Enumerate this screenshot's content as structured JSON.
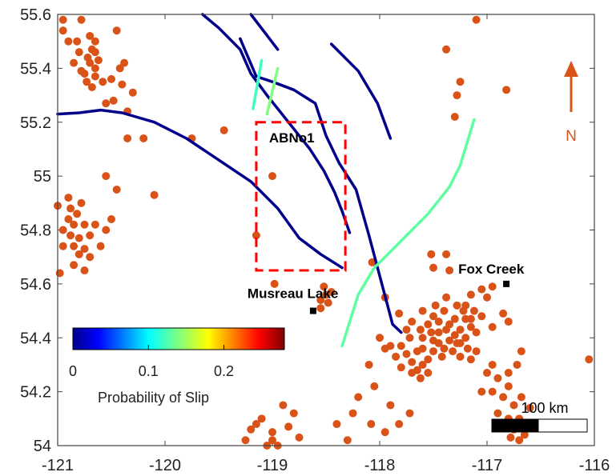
{
  "chart_data": {
    "type": "map",
    "xlim": [
      -121,
      -116
    ],
    "ylim": [
      54,
      55.6
    ],
    "x_ticks": [
      -121,
      -120,
      -119,
      -118,
      -117,
      -116
    ],
    "y_ticks": [
      54,
      54.2,
      54.4,
      54.6,
      54.8,
      55,
      55.2,
      55.4,
      55.6
    ],
    "colors": {
      "event": "#d95319",
      "fault_low": "#00008b",
      "box": "#ff0000",
      "north": "#d95319"
    },
    "faults": [
      {
        "prob": 0.0,
        "points": [
          [
            -121,
            55.23
          ],
          [
            -120.8,
            55.235
          ],
          [
            -120.6,
            55.245
          ],
          [
            -120.4,
            55.235
          ],
          [
            -120.1,
            55.2
          ],
          [
            -119.8,
            55.14
          ],
          [
            -119.5,
            55.06
          ],
          [
            -119.2,
            54.98
          ],
          [
            -118.95,
            54.88
          ],
          [
            -118.75,
            54.77
          ],
          [
            -118.55,
            54.71
          ],
          [
            -118.35,
            54.66
          ]
        ]
      },
      {
        "prob": 0.0,
        "points": [
          [
            -119.65,
            55.6
          ],
          [
            -119.5,
            55.55
          ],
          [
            -119.3,
            55.47
          ],
          [
            -119.2,
            55.38
          ],
          [
            -119.05,
            55.3
          ],
          [
            -118.85,
            55.2
          ],
          [
            -118.65,
            55.1
          ],
          [
            -118.52,
            55.02
          ],
          [
            -118.42,
            54.94
          ],
          [
            -118.35,
            54.87
          ],
          [
            -118.28,
            54.79
          ]
        ]
      },
      {
        "prob": 0.0,
        "points": [
          [
            -119.3,
            55.51
          ],
          [
            -119.15,
            55.37
          ],
          [
            -119.0,
            55.35
          ],
          [
            -118.8,
            55.32
          ],
          [
            -118.6,
            55.27
          ],
          [
            -118.5,
            55.15
          ],
          [
            -118.38,
            55.05
          ],
          [
            -118.22,
            54.95
          ],
          [
            -118.1,
            54.78
          ],
          [
            -117.98,
            54.6
          ],
          [
            -117.88,
            54.45
          ],
          [
            -117.8,
            54.42
          ]
        ]
      },
      {
        "prob": 0.0,
        "points": [
          [
            -119.2,
            55.6
          ],
          [
            -118.95,
            55.47
          ]
        ]
      },
      {
        "prob": 0.0,
        "points": [
          [
            -118.45,
            55.49
          ],
          [
            -118.2,
            55.39
          ],
          [
            -118.02,
            55.27
          ],
          [
            -117.9,
            55.14
          ]
        ]
      },
      {
        "prob": 0.12,
        "points": [
          [
            -119.1,
            55.43
          ],
          [
            -119.18,
            55.25
          ]
        ]
      },
      {
        "prob": 0.14,
        "points": [
          [
            -118.95,
            55.4
          ],
          [
            -119.05,
            55.23
          ]
        ]
      },
      {
        "prob": 0.13,
        "points": [
          [
            -117.12,
            55.21
          ],
          [
            -117.25,
            55.04
          ],
          [
            -117.35,
            54.96
          ],
          [
            -117.55,
            54.86
          ],
          [
            -117.8,
            54.76
          ],
          [
            -118.05,
            54.66
          ],
          [
            -118.2,
            54.56
          ],
          [
            -118.35,
            54.37
          ]
        ]
      }
    ],
    "events": [
      [
        -120.95,
        55.58
      ],
      [
        -120.78,
        55.58
      ],
      [
        -120.95,
        55.54
      ],
      [
        -120.7,
        55.52
      ],
      [
        -120.9,
        55.5
      ],
      [
        -120.82,
        55.5
      ],
      [
        -120.65,
        55.5
      ],
      [
        -120.68,
        55.47
      ],
      [
        -120.72,
        55.44
      ],
      [
        -120.85,
        55.42
      ],
      [
        -120.62,
        55.43
      ],
      [
        -120.7,
        55.42
      ],
      [
        -120.65,
        55.4
      ],
      [
        -120.78,
        55.39
      ],
      [
        -120.65,
        55.37
      ],
      [
        -120.73,
        55.35
      ],
      [
        -120.58,
        55.35
      ],
      [
        -120.68,
        55.33
      ],
      [
        -120.55,
        55.27
      ],
      [
        -120.35,
        55.24
      ],
      [
        -120.48,
        55.28
      ],
      [
        -120.75,
        55.38
      ],
      [
        -120.45,
        55.54
      ],
      [
        -120.42,
        55.4
      ],
      [
        -120.38,
        55.42
      ],
      [
        -120.5,
        55.36
      ],
      [
        -120.4,
        55.34
      ],
      [
        -120.3,
        55.31
      ],
      [
        -120.8,
        55.46
      ],
      [
        -120.65,
        55.46
      ],
      [
        -120.35,
        55.14
      ],
      [
        -120.2,
        55.14
      ],
      [
        -119.75,
        55.14
      ],
      [
        -119.45,
        55.17
      ],
      [
        -120.1,
        54.93
      ],
      [
        -120.55,
        55.0
      ],
      [
        -120.45,
        54.95
      ],
      [
        -121.0,
        54.89
      ],
      [
        -120.88,
        54.88
      ],
      [
        -120.82,
        54.86
      ],
      [
        -120.78,
        54.9
      ],
      [
        -120.9,
        54.84
      ],
      [
        -120.85,
        54.82
      ],
      [
        -120.75,
        54.82
      ],
      [
        -120.95,
        54.8
      ],
      [
        -120.88,
        54.78
      ],
      [
        -120.8,
        54.77
      ],
      [
        -120.7,
        54.78
      ],
      [
        -120.85,
        54.74
      ],
      [
        -120.75,
        54.73
      ],
      [
        -120.8,
        54.71
      ],
      [
        -120.7,
        54.7
      ],
      [
        -120.95,
        54.74
      ],
      [
        -120.6,
        54.74
      ],
      [
        -120.55,
        54.8
      ],
      [
        -120.5,
        54.84
      ],
      [
        -120.85,
        54.67
      ],
      [
        -120.75,
        54.65
      ],
      [
        -120.98,
        54.64
      ],
      [
        -120.65,
        54.82
      ],
      [
        -120.9,
        54.92
      ],
      [
        -119.0,
        55.0
      ],
      [
        -119.15,
        54.78
      ],
      [
        -118.98,
        54.6
      ],
      [
        -118.5,
        54.56
      ],
      [
        -118.48,
        54.53
      ],
      [
        -118.55,
        54.54
      ],
      [
        -118.45,
        54.57
      ],
      [
        -118.55,
        54.51
      ],
      [
        -118.52,
        54.59
      ],
      [
        -117.82,
        54.49
      ],
      [
        -117.95,
        54.55
      ],
      [
        -118.07,
        54.68
      ],
      [
        -117.5,
        54.66
      ],
      [
        -117.52,
        54.71
      ],
      [
        -117.38,
        54.71
      ],
      [
        -117.35,
        54.65
      ],
      [
        -117.2,
        54.52
      ],
      [
        -117.15,
        54.56
      ],
      [
        -117.05,
        54.58
      ],
      [
        -116.95,
        54.59
      ],
      [
        -117.0,
        54.55
      ],
      [
        -116.95,
        54.44
      ],
      [
        -116.85,
        54.49
      ],
      [
        -116.8,
        54.46
      ],
      [
        -117.65,
        54.35
      ],
      [
        -117.6,
        54.4
      ],
      [
        -117.55,
        54.45
      ],
      [
        -117.5,
        54.48
      ],
      [
        -117.45,
        54.42
      ],
      [
        -117.4,
        54.5
      ],
      [
        -117.35,
        54.45
      ],
      [
        -117.3,
        54.47
      ],
      [
        -117.25,
        54.43
      ],
      [
        -117.2,
        54.47
      ],
      [
        -117.15,
        54.44
      ],
      [
        -117.2,
        54.4
      ],
      [
        -117.25,
        54.38
      ],
      [
        -117.3,
        54.41
      ],
      [
        -117.35,
        54.39
      ],
      [
        -117.4,
        54.36
      ],
      [
        -117.45,
        54.38
      ],
      [
        -117.5,
        54.35
      ],
      [
        -117.55,
        54.32
      ],
      [
        -117.6,
        54.3
      ],
      [
        -117.65,
        54.28
      ],
      [
        -117.7,
        54.31
      ],
      [
        -117.75,
        54.34
      ],
      [
        -117.8,
        54.37
      ],
      [
        -117.85,
        54.33
      ],
      [
        -117.9,
        54.37
      ],
      [
        -117.95,
        54.36
      ],
      [
        -117.72,
        54.4
      ],
      [
        -117.6,
        54.36
      ],
      [
        -117.5,
        54.39
      ],
      [
        -117.38,
        54.43
      ],
      [
        -117.28,
        54.38
      ],
      [
        -117.18,
        54.36
      ],
      [
        -117.1,
        54.42
      ],
      [
        -117.05,
        54.48
      ],
      [
        -117.1,
        54.35
      ],
      [
        -117.15,
        54.32
      ],
      [
        -117.25,
        54.33
      ],
      [
        -117.32,
        54.35
      ],
      [
        -117.42,
        54.33
      ],
      [
        -117.55,
        54.27
      ],
      [
        -117.62,
        54.25
      ],
      [
        -117.7,
        54.27
      ],
      [
        -117.8,
        54.29
      ],
      [
        -117.45,
        54.46
      ],
      [
        -117.28,
        54.52
      ],
      [
        -117.38,
        54.55
      ],
      [
        -117.48,
        54.52
      ],
      [
        -117.6,
        54.5
      ],
      [
        -117.7,
        54.46
      ],
      [
        -117.75,
        54.43
      ],
      [
        -117.62,
        54.43
      ],
      [
        -117.52,
        54.42
      ],
      [
        -117.22,
        54.5
      ],
      [
        -117.12,
        54.5
      ],
      [
        -117.15,
        54.47
      ],
      [
        -117.0,
        54.27
      ],
      [
        -116.9,
        54.25
      ],
      [
        -116.95,
        54.2
      ],
      [
        -116.85,
        54.18
      ],
      [
        -116.8,
        54.22
      ],
      [
        -116.75,
        54.15
      ],
      [
        -116.8,
        54.1
      ],
      [
        -116.85,
        54.07
      ],
      [
        -116.75,
        54.06
      ],
      [
        -116.7,
        54.1
      ],
      [
        -116.65,
        54.04
      ],
      [
        -116.7,
        54.02
      ],
      [
        -116.78,
        54.03
      ],
      [
        -116.9,
        54.12
      ],
      [
        -116.95,
        54.3
      ],
      [
        -117.05,
        54.2
      ],
      [
        -116.72,
        54.3
      ],
      [
        -116.68,
        54.35
      ],
      [
        -116.6,
        54.14
      ],
      [
        -116.62,
        54.08
      ],
      [
        -116.68,
        54.18
      ],
      [
        -116.8,
        54.27
      ],
      [
        -117.38,
        55.47
      ],
      [
        -117.25,
        55.35
      ],
      [
        -117.28,
        55.3
      ],
      [
        -117.3,
        55.22
      ],
      [
        -117.1,
        55.58
      ],
      [
        -116.82,
        55.32
      ],
      [
        -116.05,
        54.32
      ],
      [
        -117.72,
        54.12
      ],
      [
        -117.9,
        54.15
      ],
      [
        -118.05,
        54.22
      ],
      [
        -118.2,
        54.18
      ],
      [
        -118.25,
        54.12
      ],
      [
        -118.4,
        54.08
      ],
      [
        -118.08,
        54.08
      ],
      [
        -117.95,
        54.05
      ],
      [
        -117.82,
        54.08
      ],
      [
        -118.3,
        54.02
      ],
      [
        -118.1,
        54.3
      ],
      [
        -118.0,
        54.4
      ],
      [
        -119.1,
        54.1
      ],
      [
        -119.15,
        54.08
      ],
      [
        -119.0,
        54.05
      ],
      [
        -118.85,
        54.07
      ],
      [
        -118.75,
        54.03
      ],
      [
        -118.8,
        54.12
      ],
      [
        -118.9,
        54.15
      ],
      [
        -119.2,
        54.06
      ],
      [
        -119.25,
        54.02
      ],
      [
        -119.05,
        54.0
      ],
      [
        -119.0,
        54.02
      ],
      [
        -118.95,
        54.0
      ]
    ],
    "markers": [
      {
        "name": "Fox Creek",
        "x": -116.82,
        "y": 54.6
      },
      {
        "name": "Musreau Lake",
        "x": -118.62,
        "y": 54.5
      }
    ],
    "box": {
      "label": "ABNo1",
      "x1": -119.15,
      "x2": -118.32,
      "y1": 54.65,
      "y2": 55.2
    },
    "labels": {
      "box": "ABNo1",
      "fox_creek": "Fox Creek",
      "musreau": "Musreau Lake",
      "north": "N",
      "scale": "100 km"
    },
    "colorbar": {
      "label": "Probability of Slip",
      "min": 0,
      "max": 0.28,
      "ticks": [
        "0",
        "0.1",
        "0.2"
      ],
      "colormap": "jet"
    }
  }
}
